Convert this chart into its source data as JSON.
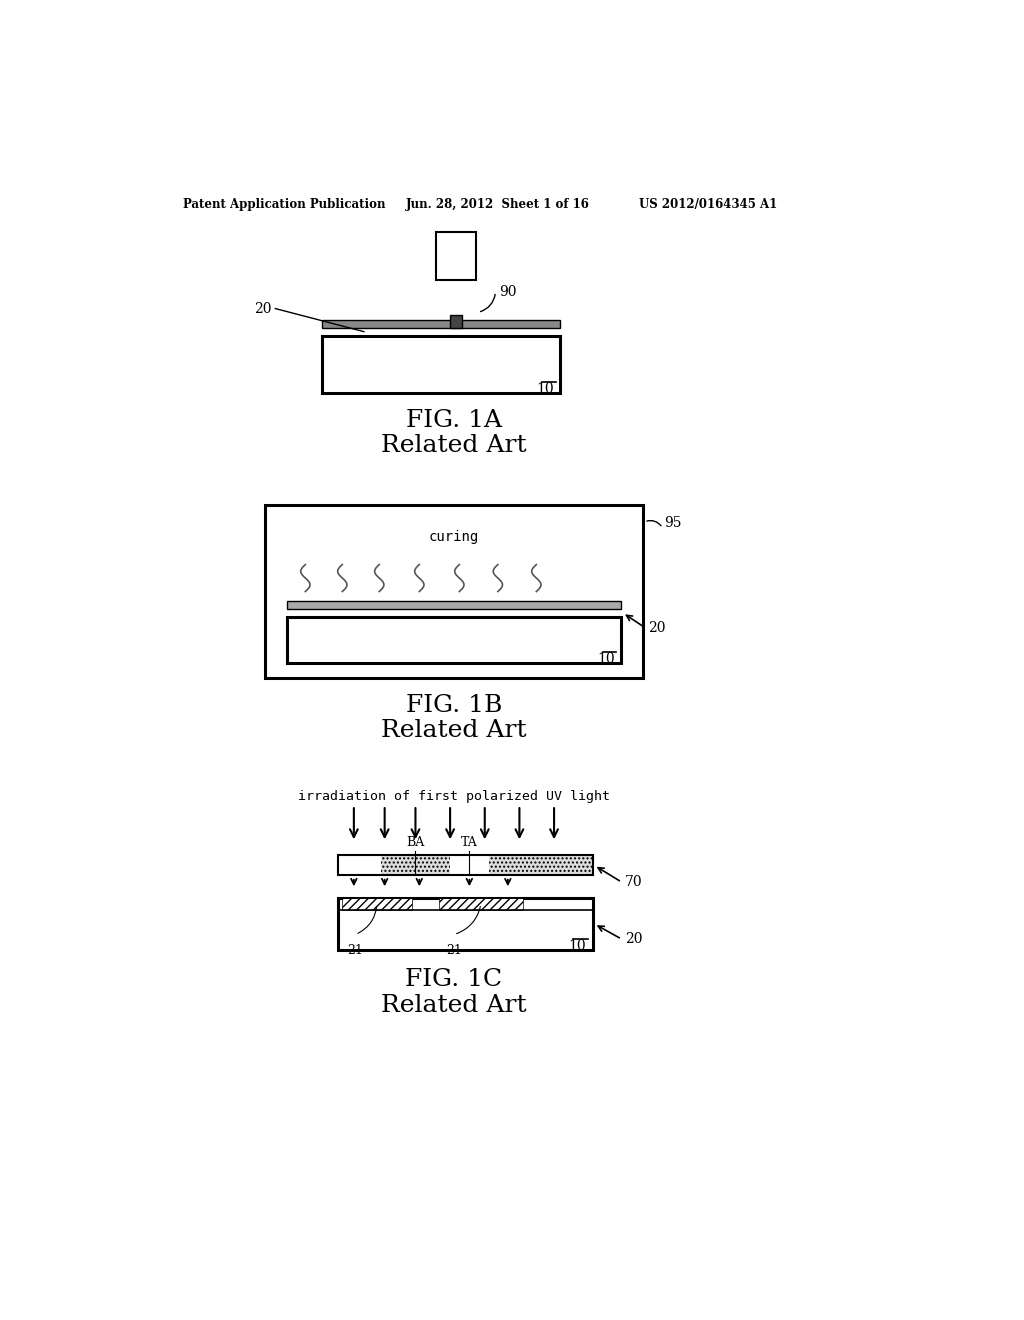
{
  "bg_color": "#ffffff",
  "header_left": "Patent Application Publication",
  "header_center": "Jun. 28, 2012  Sheet 1 of 16",
  "header_right": "US 2012/0164345 A1",
  "fig1a_label": "FIG. 1A",
  "fig1b_label": "FIG. 1B",
  "fig1c_label": "FIG. 1C",
  "related_art": "Related Art",
  "label_90": "90",
  "label_20": "20",
  "label_10": "10",
  "label_95": "95",
  "label_70": "70",
  "label_20b": "20",
  "label_21a": "21",
  "label_21b": "21",
  "label_BA": "BA",
  "label_TA": "TA",
  "curing_text": "curing",
  "uv_text": "irradiation of first polarized UV light"
}
